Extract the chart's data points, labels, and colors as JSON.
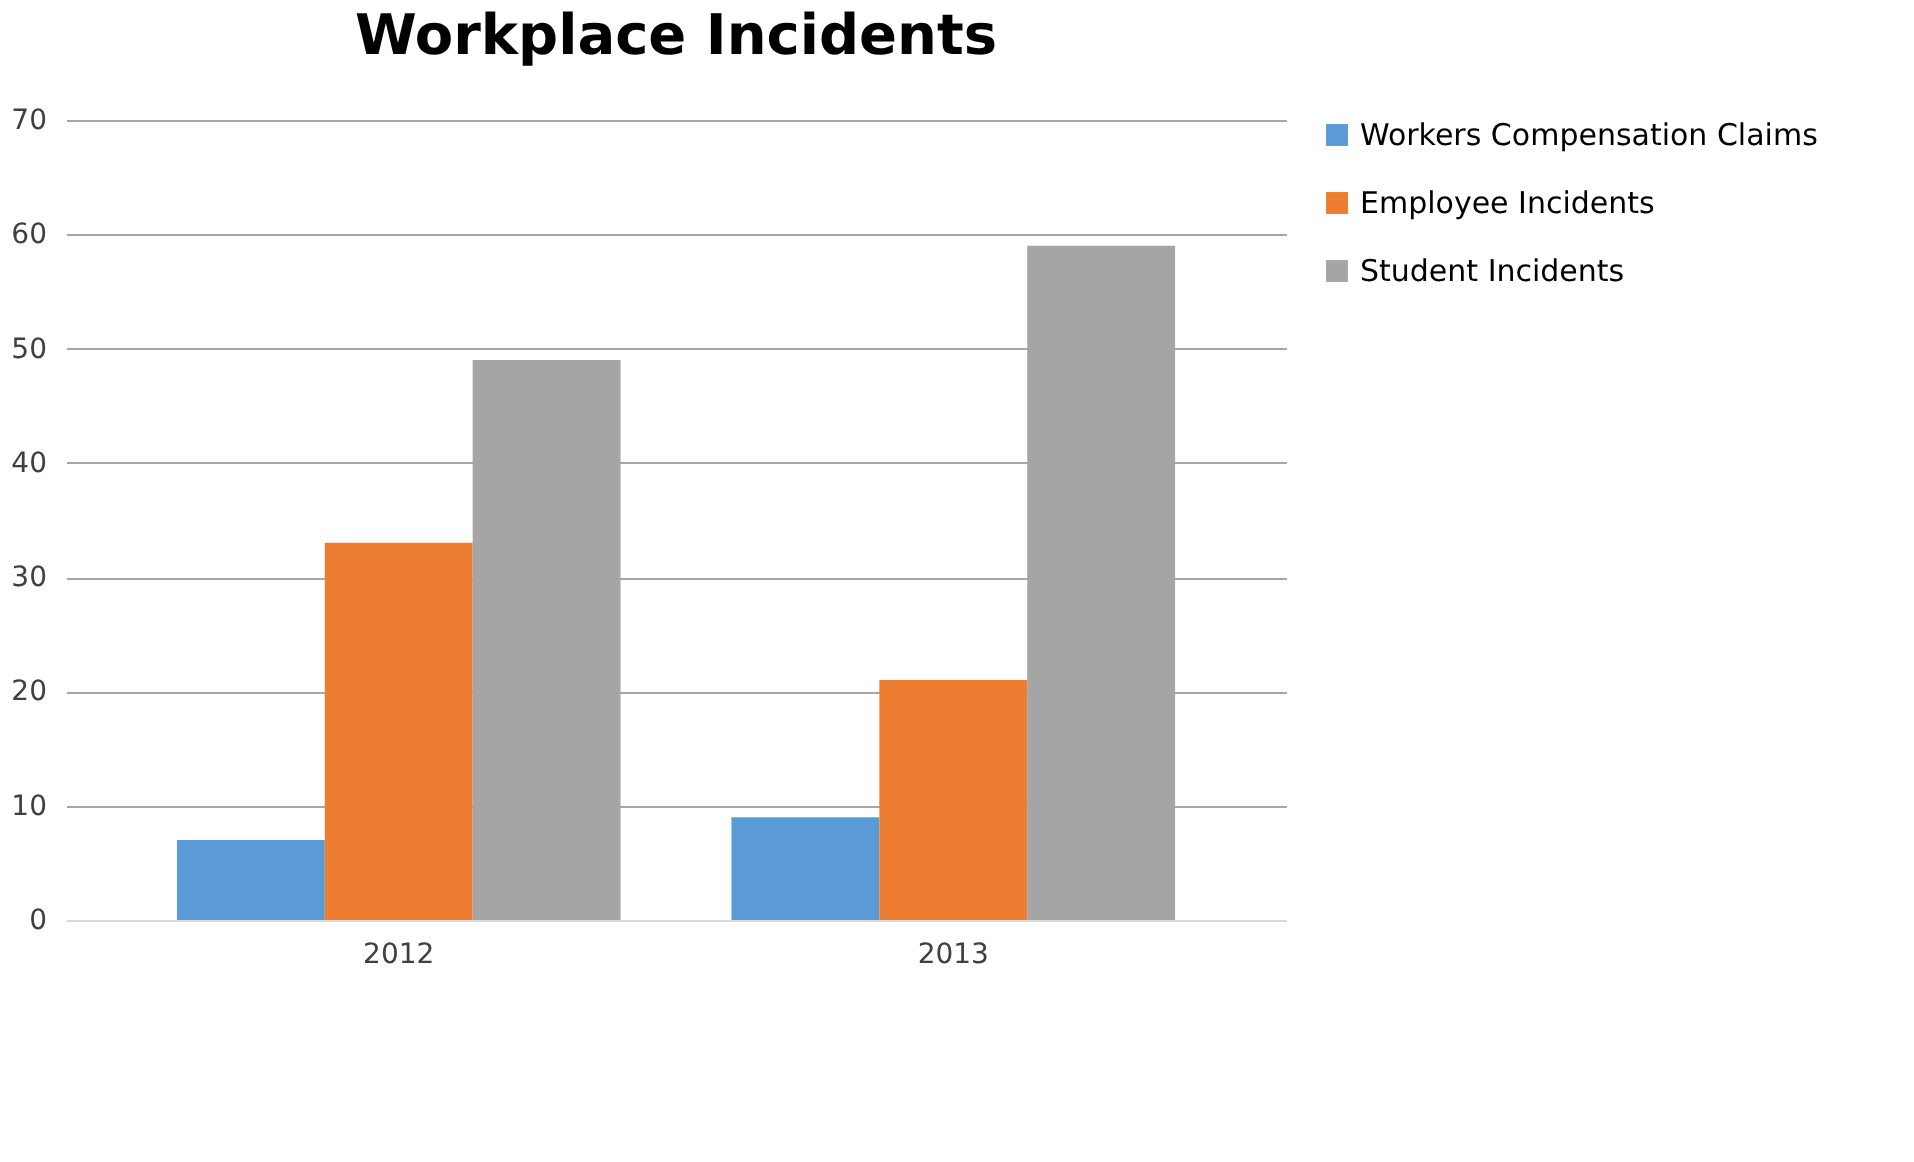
{
  "chart_data": {
    "type": "bar",
    "title": "Workplace Incidents",
    "categories": [
      "2012",
      "2013"
    ],
    "series": [
      {
        "name": "Workers Compensation Claims",
        "color": "#5b9bd5",
        "values": [
          7,
          9
        ]
      },
      {
        "name": "Employee Incidents",
        "color": "#ed7d31",
        "values": [
          33,
          21
        ]
      },
      {
        "name": "Student Incidents",
        "color": "#a5a5a5",
        "values": [
          49,
          59
        ]
      }
    ],
    "ylim": [
      0,
      70
    ],
    "yticks": [
      0,
      10,
      20,
      30,
      40,
      50,
      60,
      70
    ],
    "grid": "y",
    "legend": "right"
  }
}
